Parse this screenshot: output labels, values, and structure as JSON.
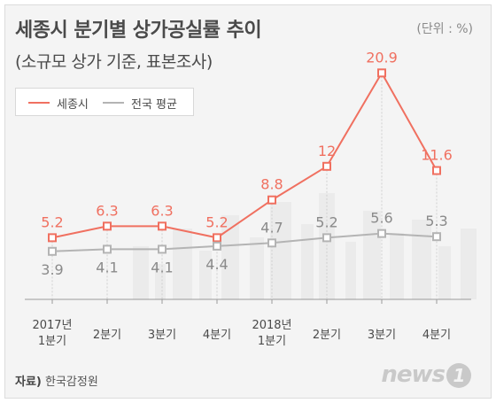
{
  "title": "세종시 분기별 상가공실률 추이",
  "subtitle": "(소규모 상가 기준, 표본조사)",
  "unit": "(단위 : %)",
  "source_label": "자료)",
  "source_text": "한국감정원",
  "logo_text": "news",
  "logo_badge": "1",
  "colors": {
    "sejong": "#f07060",
    "national": "#b4b4b4"
  },
  "chart_data": {
    "type": "line",
    "categories": [
      "2017년\n1분기",
      "2분기",
      "3분기",
      "4분기",
      "2018년\n1분기",
      "2분기",
      "3분기",
      "4분기"
    ],
    "series": [
      {
        "name": "세종시",
        "values": [
          5.2,
          6.3,
          6.3,
          5.2,
          8.8,
          12,
          20.9,
          11.6
        ],
        "labels": [
          "5.2",
          "6.3",
          "6.3",
          "5.2",
          "8.8",
          "12",
          "20.9",
          "11.6"
        ]
      },
      {
        "name": "전국 평균",
        "values": [
          3.9,
          4.1,
          4.1,
          4.4,
          4.7,
          5.2,
          5.6,
          5.3
        ],
        "labels": [
          "3.9",
          "4.1",
          "4.1",
          "4.4",
          "4.7",
          "5.2",
          "5.6",
          "5.3"
        ]
      }
    ],
    "legend": "top-left"
  }
}
